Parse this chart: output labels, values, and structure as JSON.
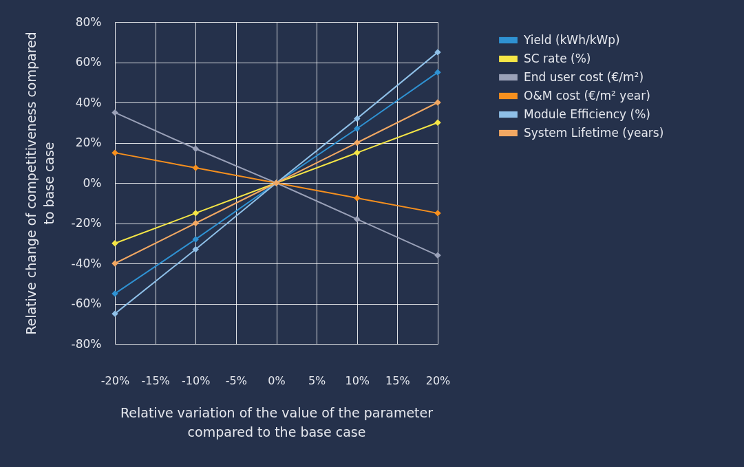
{
  "chart_data": {
    "type": "line",
    "xlabel": "Relative variation of the value of the parameter compared to the base case",
    "ylabel": "Relative change of competitiveness compared to base case",
    "x": [
      -20,
      -10,
      0,
      10,
      20
    ],
    "series": [
      {
        "name": "Yield (kWh/kWp)",
        "color": "#2f92d3",
        "values": [
          -55,
          -28,
          0,
          27,
          55
        ]
      },
      {
        "name": "SC rate (%)",
        "color": "#f5e646",
        "values": [
          -30,
          -15,
          0,
          15,
          30
        ]
      },
      {
        "name": "End user cost (€/m²)",
        "color": "#9aa1b8",
        "values": [
          35,
          17,
          0,
          -18,
          -36
        ]
      },
      {
        "name": "O&M cost (€/m² year)",
        "color": "#f7901e",
        "values": [
          15,
          7.5,
          0,
          -7.5,
          -15
        ]
      },
      {
        "name": "Module Efficiency (%)",
        "color": "#8fc0e8",
        "values": [
          -65,
          -33,
          0,
          32,
          65
        ]
      },
      {
        "name": "System Lifetime (years)",
        "color": "#f2a863",
        "values": [
          -40,
          -20,
          0,
          20,
          40
        ]
      }
    ],
    "xlim": [
      -20,
      20
    ],
    "ylim": [
      -80,
      80
    ],
    "xticks": [
      {
        "value": -20,
        "label": "-20%"
      },
      {
        "value": -15,
        "label": "-15%"
      },
      {
        "value": -10,
        "label": "-10%"
      },
      {
        "value": -5,
        "label": "-5%"
      },
      {
        "value": 0,
        "label": "0%"
      },
      {
        "value": 5,
        "label": "5%"
      },
      {
        "value": 10,
        "label": "10%"
      },
      {
        "value": 15,
        "label": "15%"
      },
      {
        "value": 20,
        "label": "20%"
      }
    ],
    "yticks": [
      {
        "value": -80,
        "label": "-80%"
      },
      {
        "value": -60,
        "label": "-60%"
      },
      {
        "value": -40,
        "label": "-40%"
      },
      {
        "value": -20,
        "label": "-20%"
      },
      {
        "value": 0,
        "label": "0%"
      },
      {
        "value": 20,
        "label": "20%"
      },
      {
        "value": 40,
        "label": "40%"
      },
      {
        "value": 60,
        "label": "60%"
      },
      {
        "value": 80,
        "label": "80%"
      }
    ],
    "grid": true,
    "legend": "top right",
    "marker": "diamond",
    "line_style": "solid"
  }
}
